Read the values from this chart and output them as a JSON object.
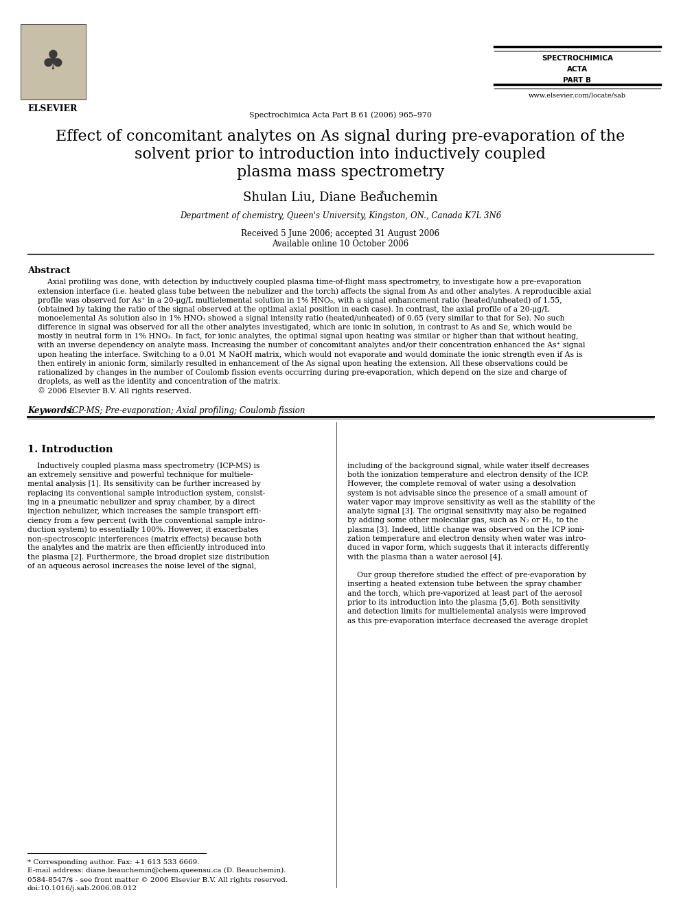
{
  "bg_color": "#ffffff",
  "journal_name_line1": "SPECTROCHIMICA",
  "journal_name_line2": "ACTA",
  "journal_name_line3": "PART B",
  "journal_citation": "Spectrochimica Acta Part B 61 (2006) 965–970",
  "journal_url": "www.elsevier.com/locate/sab",
  "title_line1": "Effect of concomitant analytes on As signal during pre-evaporation of the",
  "title_line2": "solvent prior to introduction into inductively coupled",
  "title_line3": "plasma mass spectrometry",
  "authors": "Shulan Liu, Diane Beauchemin",
  "affiliation": "Department of chemistry, Queen's University, Kingston, ON., Canada K7L 3N6",
  "date1": "Received 5 June 2006; accepted 31 August 2006",
  "date2": "Available online 10 October 2006",
  "abstract_title": "Abstract",
  "abstract_lines": [
    "    Axial profiling was done, with detection by inductively coupled plasma time-of-flight mass spectrometry, to investigate how a pre-evaporation",
    "extension interface (i.e. heated glass tube between the nebulizer and the torch) affects the signal from As and other analytes. A reproducible axial",
    "profile was observed for As⁺ in a 20-μg/L multielemental solution in 1% HNO₃, with a signal enhancement ratio (heated/unheated) of 1.55,",
    "(obtained by taking the ratio of the signal observed at the optimal axial position in each case). In contrast, the axial profile of a 20-μg/L",
    "monoelemental As solution also in 1% HNO₃ showed a signal intensity ratio (heated/unheated) of 0.65 (very similar to that for Se). No such",
    "difference in signal was observed for all the other analytes investigated, which are ionic in solution, in contrast to As and Se, which would be",
    "mostly in neutral form in 1% HNO₃. In fact, for ionic analytes, the optimal signal upon heating was similar or higher than that without heating,",
    "with an inverse dependency on analyte mass. Increasing the number of concomitant analytes and/or their concentration enhanced the As⁺ signal",
    "upon heating the interface. Switching to a 0.01 M NaOH matrix, which would not evaporate and would dominate the ionic strength even if As is",
    "then entirely in anionic form, similarly resulted in enhancement of the As signal upon heating the extension. All these observations could be",
    "rationalized by changes in the number of Coulomb fission events occurring during pre-evaporation, which depend on the size and charge of",
    "droplets, as well as the identity and concentration of the matrix.",
    "© 2006 Elsevier B.V. All rights reserved."
  ],
  "keywords_label": "Keywords:",
  "keywords_text": " ICP-MS; Pre-evaporation; Axial profiling; Coulomb fission",
  "section1_title": "1. Introduction",
  "col1_lines": [
    "    Inductively coupled plasma mass spectrometry (ICP-MS) is",
    "an extremely sensitive and powerful technique for multiele-",
    "mental analysis [1]. Its sensitivity can be further increased by",
    "replacing its conventional sample introduction system, consist-",
    "ing in a pneumatic nebulizer and spray chamber, by a direct",
    "injection nebulizer, which increases the sample transport effi-",
    "ciency from a few percent (with the conventional sample intro-",
    "duction system) to essentially 100%. However, it exacerbates",
    "non-spectroscopic interferences (matrix effects) because both",
    "the analytes and the matrix are then efficiently introduced into",
    "the plasma [2]. Furthermore, the broad droplet size distribution",
    "of an aqueous aerosol increases the noise level of the signal,"
  ],
  "col2_lines": [
    "including of the background signal, while water itself decreases",
    "both the ionization temperature and electron density of the ICP.",
    "However, the complete removal of water using a desolvation",
    "system is not advisable since the presence of a small amount of",
    "water vapor may improve sensitivity as well as the stability of the",
    "analyte signal [3]. The original sensitivity may also be regained",
    "by adding some other molecular gas, such as N₂ or H₂, to the",
    "plasma [3]. Indeed, little change was observed on the ICP ioni-",
    "zation temperature and electron density when water was intro-",
    "duced in vapor form, which suggests that it interacts differently",
    "with the plasma than a water aerosol [4].",
    "",
    "    Our group therefore studied the effect of pre-evaporation by",
    "inserting a heated extension tube between the spray chamber",
    "and the torch, which pre-vaporized at least part of the aerosol",
    "prior to its introduction into the plasma [5,6]. Both sensitivity",
    "and detection limits for multielemental analysis were improved",
    "as this pre-evaporation interface decreased the average droplet"
  ],
  "footnote_star": "* Corresponding author. Fax: +1 613 533 6669.",
  "footnote_email": "E-mail address: diane.beauchemin@chem.queensu.ca (D. Beauchemin).",
  "footnote_issn": "0584-8547/$ - see front matter © 2006 Elsevier B.V. All rights reserved.",
  "footnote_doi": "doi:10.1016/j.sab.2006.08.012"
}
